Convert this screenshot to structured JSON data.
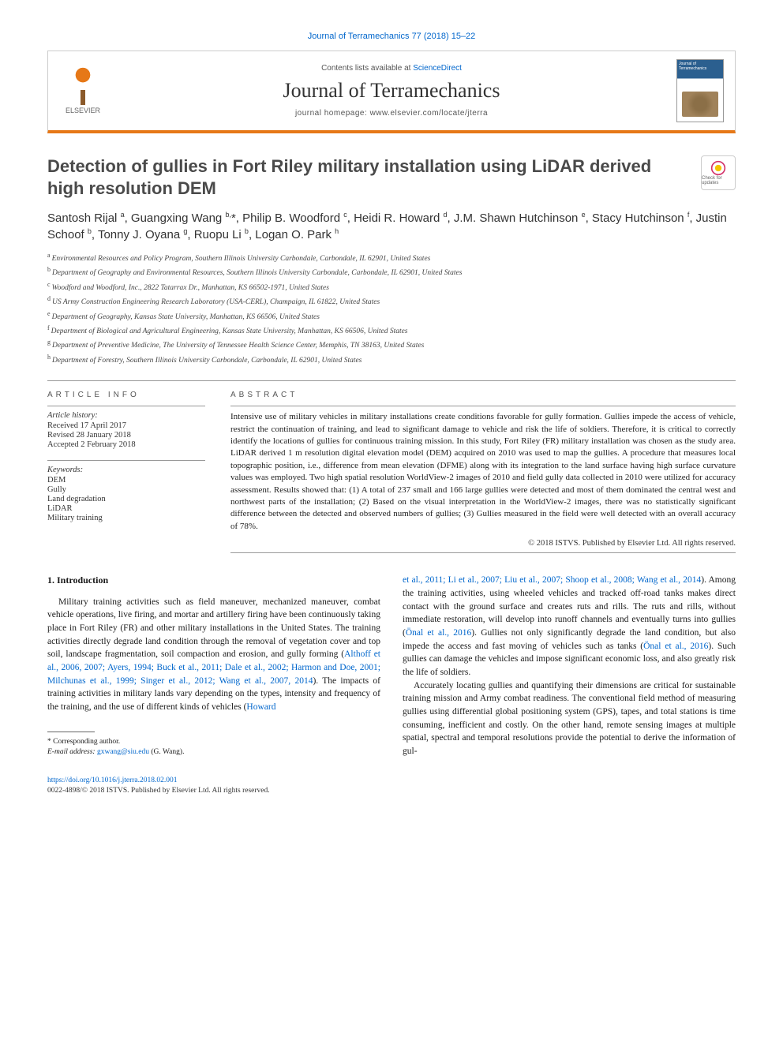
{
  "header": {
    "top_link": "Journal of Terramechanics 77 (2018) 15–22",
    "contents_prefix": "Contents lists available at ",
    "contents_link": "ScienceDirect",
    "journal_title": "Journal of Terramechanics",
    "homepage_prefix": "journal homepage: ",
    "homepage_url": "www.elsevier.com/locate/jterra",
    "publisher_name": "ELSEVIER",
    "cover_label": "Journal of Terramechanics"
  },
  "check_badge": {
    "label": "Check for updates"
  },
  "article": {
    "title": "Detection of gullies in Fort Riley military installation using LiDAR derived high resolution DEM",
    "authors_html": "Santosh Rijal <sup>a</sup>, Guangxing Wang <sup>b,</sup>*, Philip B. Woodford <sup>c</sup>, Heidi R. Howard <sup>d</sup>, J.M. Shawn Hutchinson <sup>e</sup>, Stacy Hutchinson <sup>f</sup>, Justin Schoof <sup>b</sup>, Tonny J. Oyana <sup>g</sup>, Ruopu Li <sup>b</sup>, Logan O. Park <sup>h</sup>"
  },
  "affiliations": [
    {
      "sup": "a",
      "text": "Environmental Resources and Policy Program, Southern Illinois University Carbondale, Carbondale, IL 62901, United States"
    },
    {
      "sup": "b",
      "text": "Department of Geography and Environmental Resources, Southern Illinois University Carbondale, Carbondale, IL 62901, United States"
    },
    {
      "sup": "c",
      "text": "Woodford and Woodford, Inc., 2822 Tatarrax Dr., Manhattan, KS 66502-1971, United States"
    },
    {
      "sup": "d",
      "text": "US Army Construction Engineering Research Laboratory (USA-CERL), Champaign, IL 61822, United States"
    },
    {
      "sup": "e",
      "text": "Department of Geography, Kansas State University, Manhattan, KS 66506, United States"
    },
    {
      "sup": "f",
      "text": "Department of Biological and Agricultural Engineering, Kansas State University, Manhattan, KS 66506, United States"
    },
    {
      "sup": "g",
      "text": "Department of Preventive Medicine, The University of Tennessee Health Science Center, Memphis, TN 38163, United States"
    },
    {
      "sup": "h",
      "text": "Department of Forestry, Southern Illinois University Carbondale, Carbondale, IL 62901, United States"
    }
  ],
  "info": {
    "heading": "ARTICLE INFO",
    "history_label": "Article history:",
    "history": [
      "Received 17 April 2017",
      "Revised 28 January 2018",
      "Accepted 2 February 2018"
    ],
    "keywords_label": "Keywords:",
    "keywords": [
      "DEM",
      "Gully",
      "Land degradation",
      "LiDAR",
      "Military training"
    ]
  },
  "abstract": {
    "heading": "ABSTRACT",
    "text": "Intensive use of military vehicles in military installations create conditions favorable for gully formation. Gullies impede the access of vehicle, restrict the continuation of training, and lead to significant damage to vehicle and risk the life of soldiers. Therefore, it is critical to correctly identify the locations of gullies for continuous training mission. In this study, Fort Riley (FR) military installation was chosen as the study area. LiDAR derived 1 m resolution digital elevation model (DEM) acquired on 2010 was used to map the gullies. A procedure that measures local topographic position, i.e., difference from mean elevation (DFME) along with its integration to the land surface having high surface curvature values was employed. Two high spatial resolution WorldView-2 images of 2010 and field gully data collected in 2010 were utilized for accuracy assessment. Results showed that: (1) A total of 237 small and 166 large gullies were detected and most of them dominated the central west and northwest parts of the installation; (2) Based on the visual interpretation in the WorldView-2 images, there was no statistically significant difference between the detected and observed numbers of gullies; (3) Gullies measured in the field were well detected with an overall accuracy of 78%.",
    "copyright": "© 2018 ISTVS. Published by Elsevier Ltd. All rights reserved."
  },
  "body": {
    "section_heading": "1. Introduction",
    "col1_p1_pre": "Military training activities such as field maneuver, mechanized maneuver, combat vehicle operations, live firing, and mortar and artillery firing have been continuously taking place in Fort Riley (FR) and other military installations in the United States. The training activities directly degrade land condition through the removal of vegetation cover and top soil, landscape fragmentation, soil compaction and erosion, and gully forming (",
    "col1_p1_cite1": "Althoff et al., 2006, 2007; Ayers, 1994; Buck et al., 2011; Dale et al., 2002; Harmon and Doe, 2001; Milchunas et al., 1999; Singer et al., 2012; Wang et al., 2007, 2014",
    "col1_p1_mid": "). The impacts of training activities in military lands vary depending on the types, intensity and frequency of the training, and the use of different kinds of vehicles (",
    "col1_p1_cite2": "Howard",
    "col2_p1_cite1": "et al., 2011; Li et al., 2007; Liu et al., 2007; Shoop et al., 2008; Wang et al., 2014",
    "col2_p1_mid1": "). Among the training activities, using wheeled vehicles and tracked off-road tanks makes direct contact with the ground surface and creates ruts and rills. The ruts and rills, without immediate restoration, will develop into runoff channels and eventually turns into gullies (",
    "col2_p1_cite2": "Önal et al., 2016",
    "col2_p1_mid2": "). Gullies not only significantly degrade the land condition, but also impede the access and fast moving of vehicles such as tanks (",
    "col2_p1_cite3": "Önal et al., 2016",
    "col2_p1_post": "). Such gullies can damage the vehicles and impose significant economic loss, and also greatly risk the life of soldiers.",
    "col2_p2": "Accurately locating gullies and quantifying their dimensions are critical for sustainable training mission and Army combat readiness. The conventional field method of measuring gullies using differential global positioning system (GPS), tapes, and total stations is time consuming, inefficient and costly. On the other hand, remote sensing images at multiple spatial, spectral and temporal resolutions provide the potential to derive the information of gul-"
  },
  "footnote": {
    "corr_label": "* Corresponding author.",
    "email_label": "E-mail address: ",
    "email": "gxwang@siu.edu",
    "email_suffix": " (G. Wang)."
  },
  "footer": {
    "doi": "https://doi.org/10.1016/j.jterra.2018.02.001",
    "issn_line": "0022-4898/© 2018 ISTVS. Published by Elsevier Ltd. All rights reserved."
  },
  "colors": {
    "link": "#0066cc",
    "accent": "#e67817",
    "text": "#1a1a1a"
  }
}
